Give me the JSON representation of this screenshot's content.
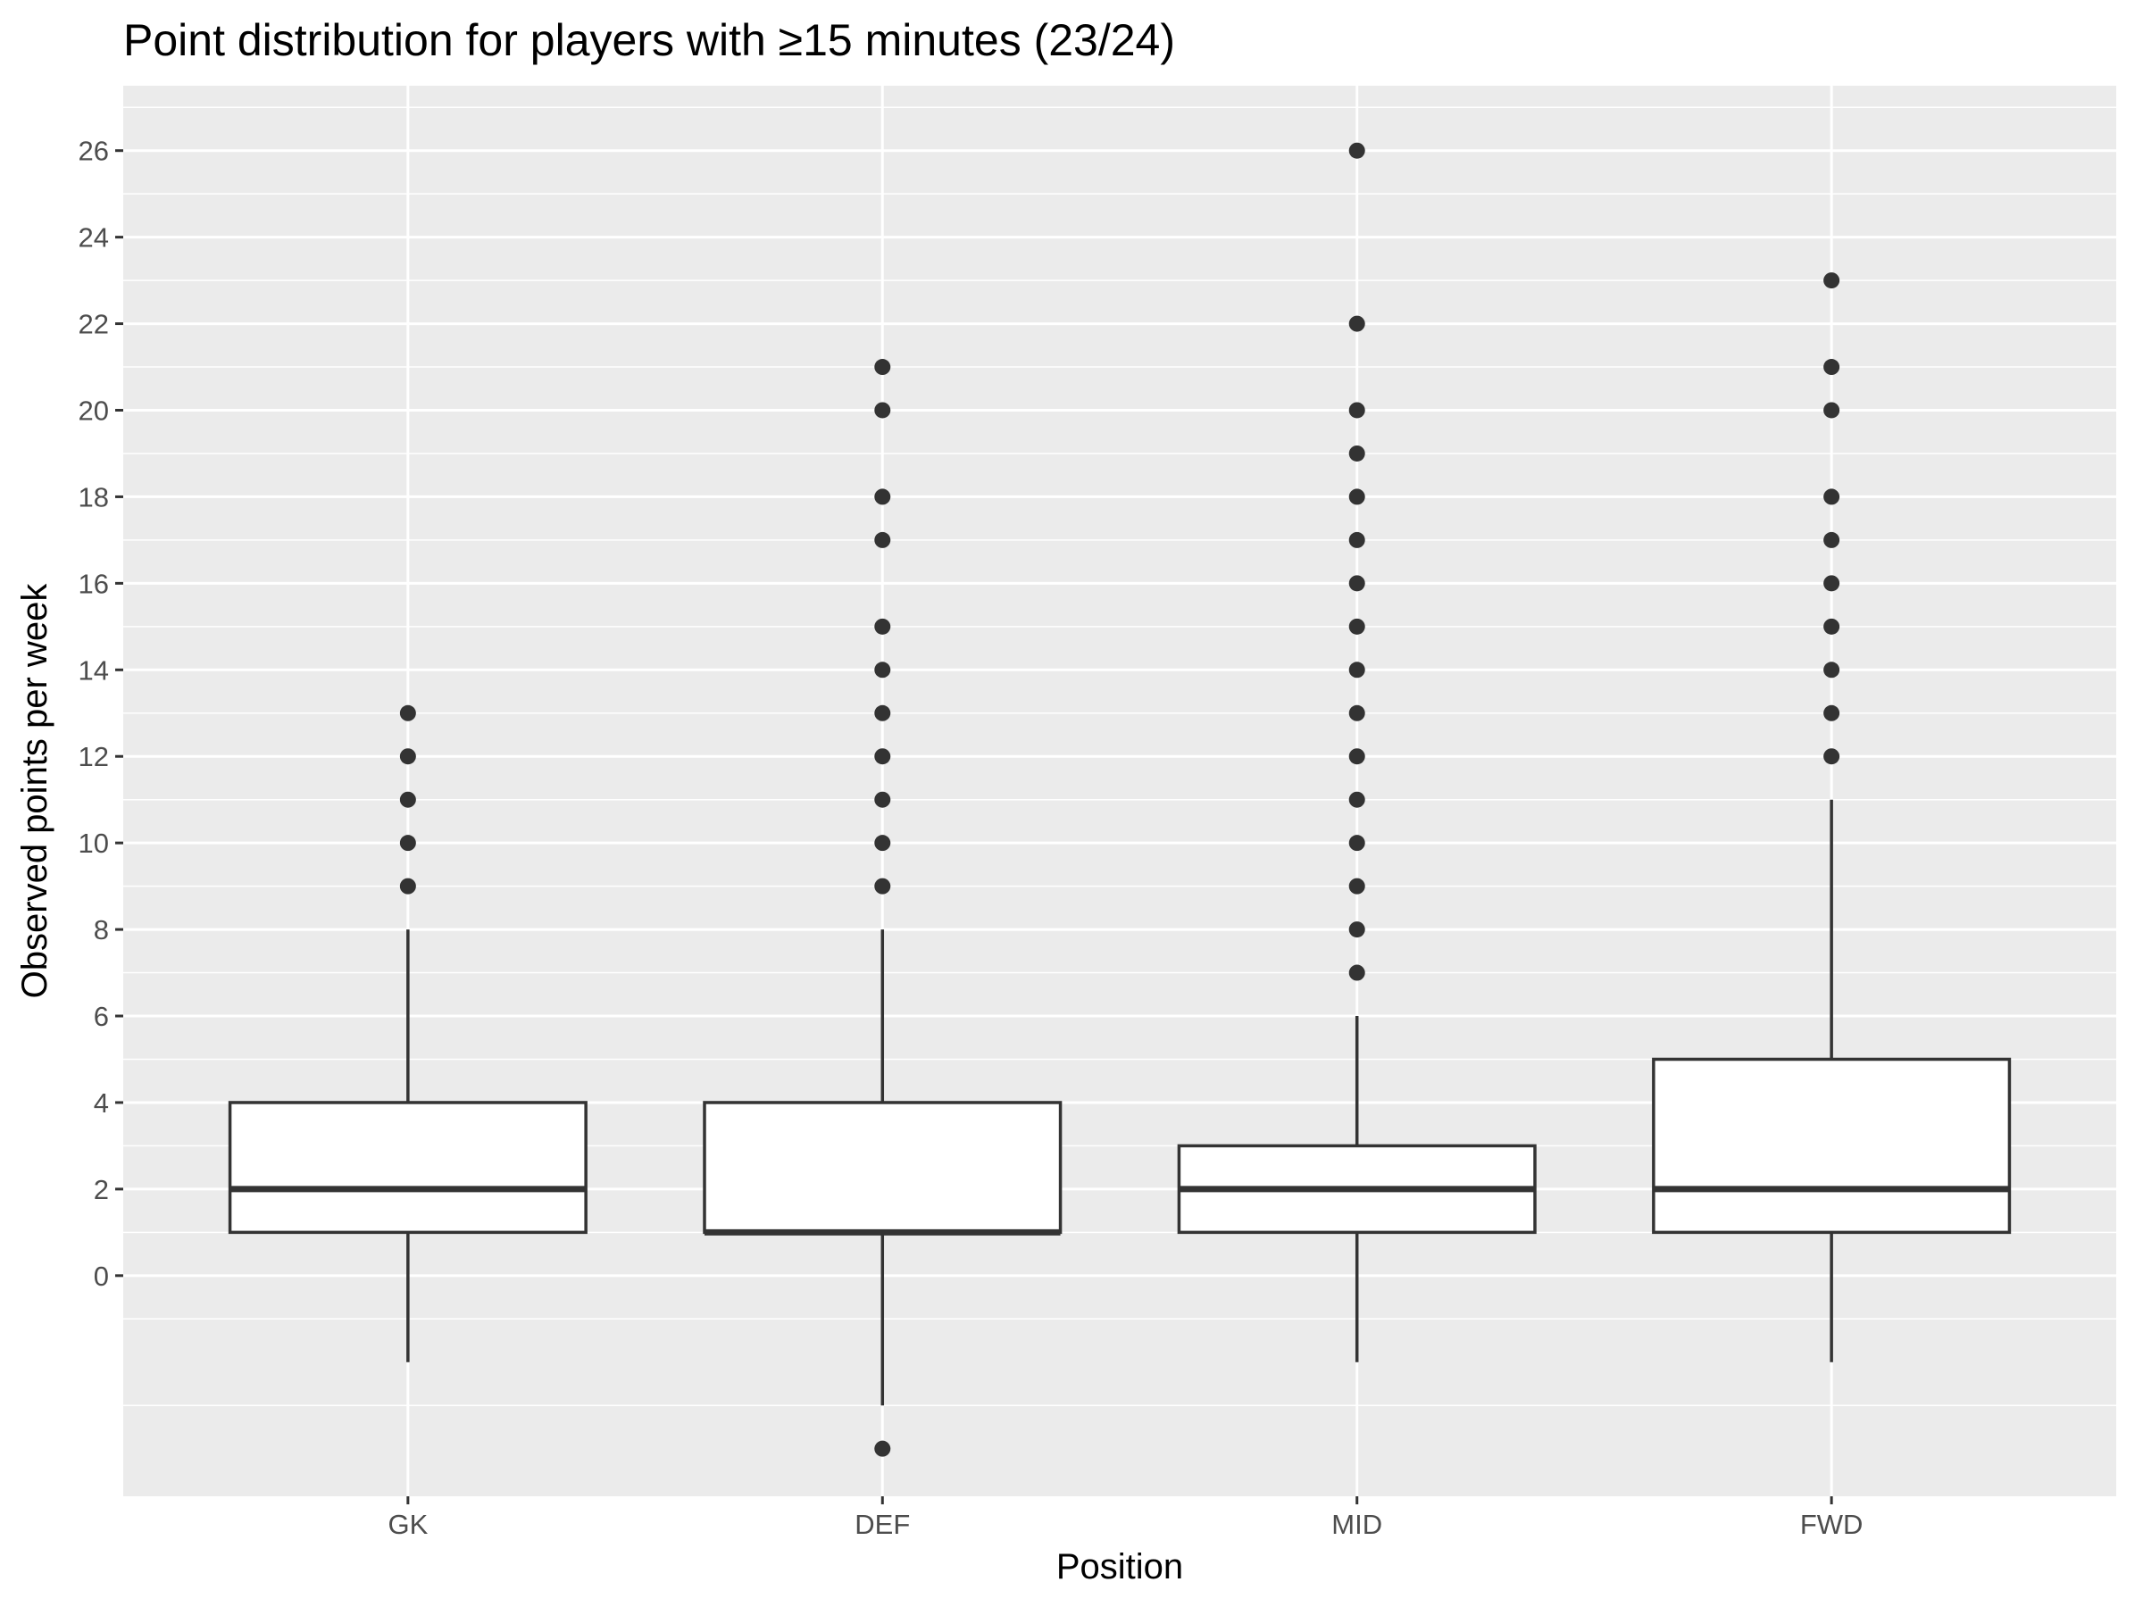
{
  "chart_data": {
    "type": "boxplot",
    "title": "Point distribution for players with ≥15 minutes (23/24)",
    "xlabel": "Position",
    "ylabel": "Observed points per week",
    "categories": [
      "GK",
      "DEF",
      "MID",
      "FWD"
    ],
    "ylim": [
      -5.1,
      27.5
    ],
    "yticks": [
      0,
      2,
      4,
      6,
      8,
      10,
      12,
      14,
      16,
      18,
      20,
      22,
      24,
      26
    ],
    "grid": true,
    "boxes": [
      {
        "category": "GK",
        "whisker_low": -2,
        "q1": 1,
        "median": 2,
        "q3": 4,
        "whisker_high": 8,
        "outliers": [
          9,
          10,
          11,
          12,
          13
        ]
      },
      {
        "category": "DEF",
        "whisker_low": -3,
        "q1": 1,
        "median": 1,
        "q3": 4,
        "whisker_high": 8,
        "outliers": [
          -4,
          9,
          10,
          11,
          12,
          13,
          14,
          15,
          17,
          18,
          20,
          21
        ]
      },
      {
        "category": "MID",
        "whisker_low": -2,
        "q1": 1,
        "median": 2,
        "q3": 3,
        "whisker_high": 6,
        "outliers": [
          7,
          8,
          9,
          10,
          11,
          12,
          13,
          14,
          15,
          16,
          17,
          18,
          19,
          20,
          22,
          26
        ]
      },
      {
        "category": "FWD",
        "whisker_low": -2,
        "q1": 1,
        "median": 2,
        "q3": 5,
        "whisker_high": 11,
        "outliers": [
          12,
          13,
          14,
          15,
          16,
          17,
          18,
          20,
          21,
          23
        ]
      }
    ],
    "colors": {
      "panel": "#ebebeb",
      "grid": "#ffffff",
      "box_fill": "#ffffff",
      "box_stroke": "#333333",
      "point": "#333333",
      "tick_label": "#4d4d4d"
    }
  }
}
